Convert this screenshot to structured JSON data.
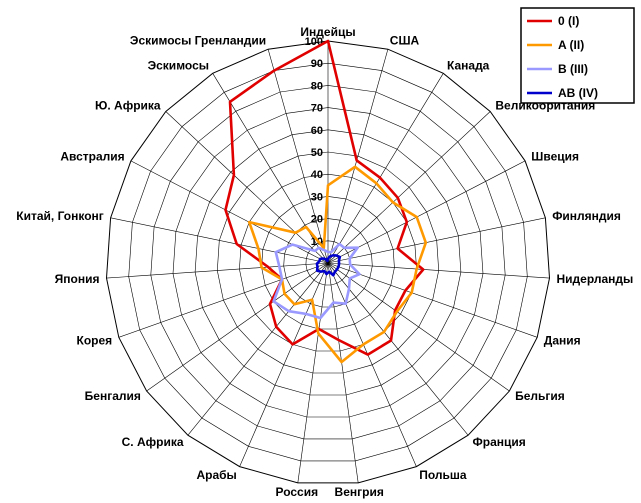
{
  "chart_data": {
    "type": "radar",
    "categories": [
      "Индейцы",
      "США",
      "Канада",
      "Великобритания",
      "Швеция",
      "Финляндия",
      "Нидерланды",
      "Дания",
      "Бельгия",
      "Франция",
      "Польша",
      "Венгрия",
      "Россия",
      "Арабы",
      "С. Африка",
      "Бенгалия",
      "Корея",
      "Япония",
      "Китай, Гонконг",
      "Австралия",
      "Ю. Африка",
      "Эскимосы",
      "Эскимосы Гренландии"
    ],
    "r_ticks": [
      10,
      20,
      30,
      40,
      50,
      60,
      70,
      80,
      90,
      100
    ],
    "r_range": [
      0,
      100
    ],
    "series": [
      {
        "name": "0 (I)",
        "color": "#e00000",
        "values": [
          100,
          48,
          45,
          43,
          40,
          32,
          43,
          37,
          37,
          45,
          45,
          35,
          30,
          40,
          37,
          32,
          22,
          27,
          42,
          52,
          58,
          85,
          90
        ]
      },
      {
        "name": "A (II)",
        "color": "#ff9900",
        "values": [
          35,
          45,
          42,
          40,
          45,
          45,
          40,
          40,
          38,
          40,
          40,
          45,
          32,
          18,
          24,
          24,
          22,
          30,
          32,
          40,
          20,
          19,
          7
        ]
      },
      {
        "name": "B (III)",
        "color": "#9999ff",
        "values": [
          5,
          5,
          10,
          10,
          15,
          10,
          10,
          15,
          12,
          15,
          20,
          18,
          25,
          25,
          28,
          30,
          22,
          22,
          24,
          18,
          8,
          8,
          6
        ]
      },
      {
        "name": "AB (IV)",
        "color": "#0000cc",
        "values": [
          2,
          3,
          4,
          5,
          6,
          5,
          5,
          5,
          5,
          5,
          6,
          4,
          5,
          4,
          5,
          6,
          5,
          5,
          4,
          4,
          3,
          2,
          1
        ]
      }
    ],
    "legend": "top-right",
    "grid": true
  }
}
